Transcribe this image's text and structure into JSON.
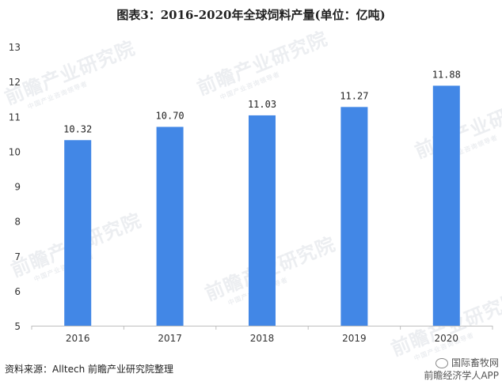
{
  "title": "图表3：2016-2020年全球饲料产量(单位：亿吨)",
  "source": "资料来源：Alltech 前瞻产业研究院整理",
  "brand": {
    "line1": "国际畜牧网",
    "line2": "前瞻经济学人APP"
  },
  "watermark": {
    "main": "前瞻产业研究院",
    "sub": "中国产业咨询领导者"
  },
  "colors": {
    "bar": "#4287e6",
    "axis": "#bfbfbf"
  },
  "chart_data": {
    "type": "bar",
    "categories": [
      "2016",
      "2017",
      "2018",
      "2019",
      "2020"
    ],
    "values": [
      10.32,
      10.7,
      11.03,
      11.27,
      11.88
    ],
    "value_labels": [
      "10.32",
      "10.70",
      "11.03",
      "11.27",
      "11.88"
    ],
    "title": "图表3：2016-2020年全球饲料产量(单位：亿吨)",
    "xlabel": "",
    "ylabel": "",
    "ylim": [
      5,
      13
    ],
    "yticks": [
      5,
      6,
      7,
      8,
      9,
      10,
      11,
      12,
      13
    ],
    "grid": false,
    "legend": "none"
  }
}
